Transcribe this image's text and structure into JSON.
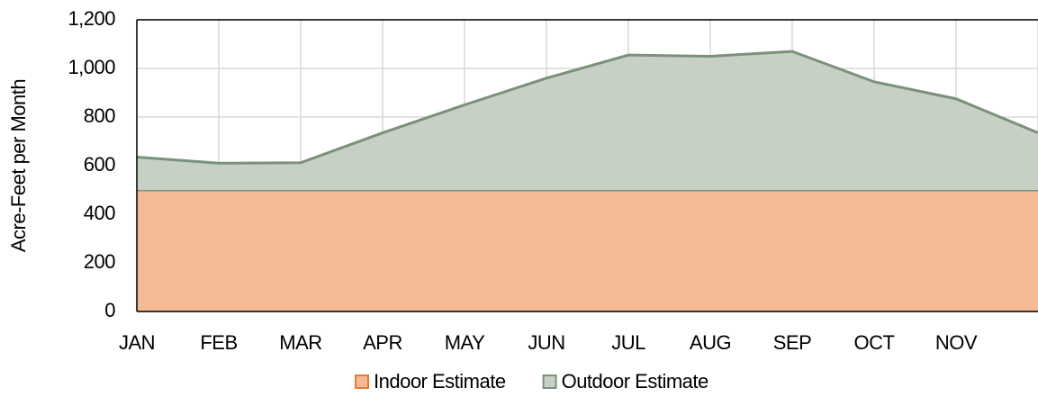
{
  "chart_data": {
    "type": "stacked_area",
    "y_label": "Acre-Feet per Month",
    "categories": [
      "JAN",
      "FEB",
      "MAR",
      "APR",
      "MAY",
      "JUN",
      "JUL",
      "AUG",
      "SEP",
      "OCT",
      "NOV",
      null
    ],
    "series": [
      {
        "name": "Indoor Estimate",
        "color": "#f4b995",
        "values": [
          500,
          500,
          500,
          500,
          500,
          500,
          500,
          500,
          500,
          500,
          500,
          500
        ]
      },
      {
        "name": "Outdoor Estimate",
        "color": "#c6d0c5",
        "values": [
          135,
          110,
          112,
          235,
          350,
          460,
          555,
          550,
          570,
          445,
          375,
          235
        ]
      }
    ],
    "ylim": [
      0,
      1200
    ],
    "yticks": [
      0,
      200,
      400,
      600,
      800,
      {
        "value": 1000,
        "label": "1,000"
      },
      {
        "value": 1200,
        "label": "1,200"
      }
    ],
    "grid": true,
    "legend": "bottom"
  }
}
